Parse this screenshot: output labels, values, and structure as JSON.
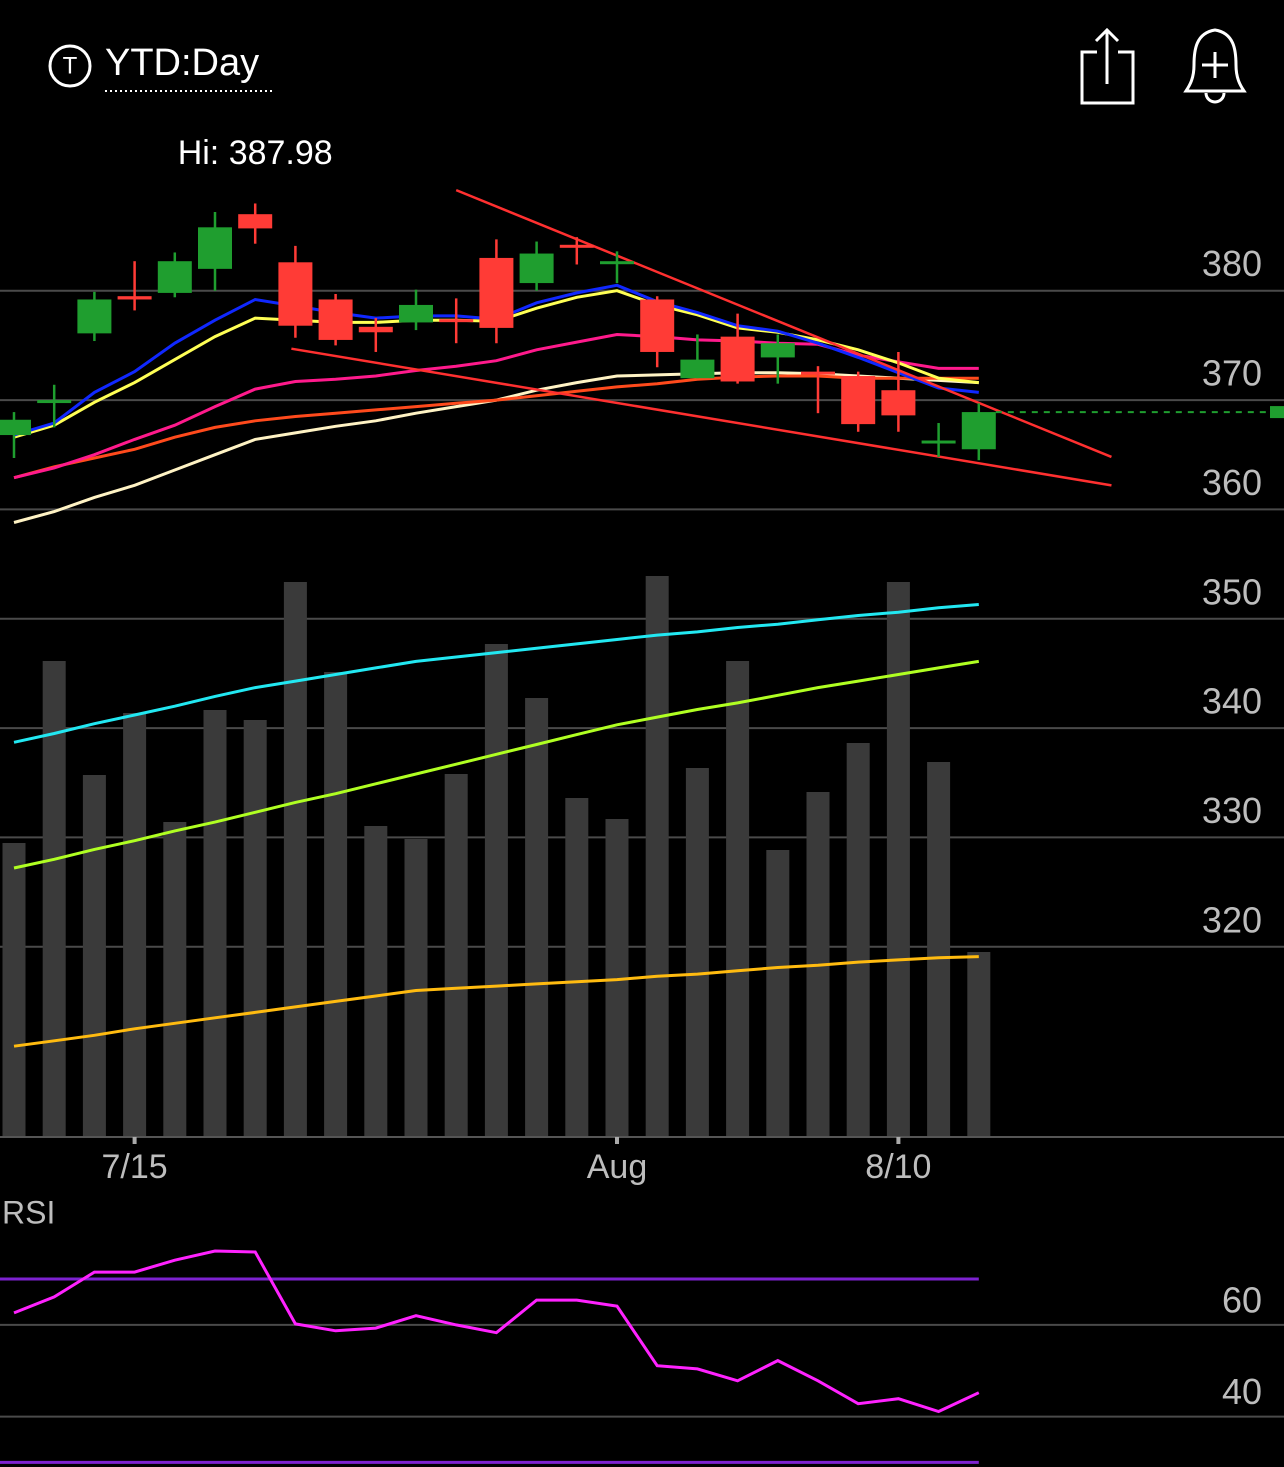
{
  "header": {
    "symbol_badge": "T",
    "range": "YTD:Day"
  },
  "chart_data": [
    {
      "type": "candlestick",
      "categories": [
        null,
        null,
        null,
        "7/15",
        null,
        null,
        null,
        null,
        null,
        null,
        null,
        null,
        null,
        null,
        null,
        "Aug",
        null,
        null,
        null,
        null,
        null,
        null,
        "8/10",
        null,
        null
      ],
      "open": [
        366.8,
        369.8,
        376.1,
        379.5,
        379.8,
        382.0,
        387.0,
        382.6,
        379.2,
        376.7,
        377.1,
        377.4,
        383.0,
        380.7,
        384.2,
        382.5,
        379.2,
        372.0,
        375.8,
        373.9,
        372.6,
        372.2,
        370.9,
        366.2,
        365.5
      ],
      "high": [
        368.9,
        371.4,
        379.9,
        382.7,
        383.5,
        387.2,
        387.98,
        384.1,
        379.7,
        377.5,
        380.1,
        379.3,
        384.7,
        384.5,
        384.9,
        383.6,
        379.5,
        376.0,
        377.9,
        376.0,
        373.1,
        372.6,
        374.4,
        367.9,
        369.7
      ],
      "low": [
        364.7,
        367.5,
        375.4,
        378.2,
        379.4,
        380.0,
        384.3,
        375.7,
        375.0,
        374.4,
        376.4,
        375.2,
        375.2,
        380.0,
        382.4,
        380.7,
        373.0,
        372.0,
        371.5,
        371.5,
        368.8,
        367.1,
        367.1,
        364.8,
        364.5
      ],
      "close": [
        368.2,
        370.0,
        379.2,
        379.2,
        382.7,
        385.8,
        385.7,
        376.8,
        375.5,
        376.2,
        378.7,
        377.3,
        376.6,
        383.4,
        384.1,
        382.7,
        374.4,
        373.7,
        371.7,
        375.2,
        372.4,
        367.8,
        368.6,
        366.3,
        368.9
      ],
      "up_color": "#1f9e2f",
      "down_color": "#ff3b36",
      "hi_label": "Hi:",
      "hi_index": 6,
      "ylim": [
        302.6,
        394.7
      ],
      "yticks": [
        320,
        330,
        340,
        350,
        360,
        370,
        380
      ],
      "grid": true,
      "overlays": [
        {
          "color": "#fff3c4",
          "values": [
            358.8,
            359.8,
            361.1,
            362.2,
            363.6,
            365.0,
            366.4,
            367.0,
            367.6,
            368.1,
            368.8,
            369.4,
            370.0,
            370.9,
            371.6,
            372.2,
            372.3,
            372.4,
            372.5,
            372.5,
            372.4,
            372.2,
            372.0,
            371.8,
            371.6
          ]
        },
        {
          "color": "#ff4a1c",
          "values": [
            362.9,
            363.9,
            364.7,
            365.5,
            366.6,
            367.5,
            368.1,
            368.5,
            368.8,
            369.1,
            369.4,
            369.7,
            370.0,
            370.4,
            370.8,
            371.2,
            371.5,
            371.9,
            372.1,
            372.2,
            372.2,
            372.0,
            372.0,
            372.0,
            372.0
          ]
        },
        {
          "color": "#ff1a8c",
          "values": [
            362.9,
            363.8,
            365.0,
            366.4,
            367.7,
            369.4,
            371.0,
            371.7,
            371.9,
            372.2,
            372.7,
            373.1,
            373.6,
            374.6,
            375.3,
            376.0,
            375.8,
            375.5,
            375.4,
            375.2,
            375.1,
            374.1,
            373.5,
            372.9,
            372.9
          ]
        },
        {
          "color": "#ffff55",
          "values": [
            366.6,
            367.7,
            369.8,
            371.6,
            373.7,
            375.8,
            377.5,
            377.3,
            377.1,
            377.1,
            377.3,
            377.3,
            377.2,
            378.4,
            379.4,
            380.0,
            378.7,
            377.8,
            376.6,
            376.2,
            375.5,
            374.6,
            373.4,
            372.0,
            371.6
          ]
        },
        {
          "color": "#1028ff",
          "values": [
            366.8,
            367.9,
            370.7,
            372.6,
            375.2,
            377.3,
            379.2,
            378.6,
            378.0,
            377.5,
            377.7,
            377.7,
            377.4,
            378.9,
            379.8,
            380.5,
            379.0,
            378.0,
            376.8,
            376.3,
            375.2,
            373.9,
            372.5,
            371.1,
            370.7
          ]
        },
        {
          "color": "#22e8f2",
          "values": [
            338.7,
            339.5,
            340.4,
            341.2,
            342.0,
            342.9,
            343.7,
            344.3,
            344.9,
            345.5,
            346.1,
            346.5,
            346.9,
            347.3,
            347.7,
            348.1,
            348.5,
            348.8,
            349.2,
            349.5,
            349.9,
            350.3,
            350.6,
            351.0,
            351.3
          ]
        },
        {
          "color": "#b0ff22",
          "values": [
            327.2,
            328.0,
            328.9,
            329.7,
            330.6,
            331.4,
            332.3,
            333.2,
            334.0,
            334.9,
            335.8,
            336.7,
            337.6,
            338.5,
            339.4,
            340.3,
            341.0,
            341.7,
            342.3,
            343.0,
            343.7,
            344.3,
            344.9,
            345.5,
            346.1
          ]
        },
        {
          "color": "#ffbb10",
          "values": [
            310.9,
            311.4,
            311.9,
            312.5,
            313.0,
            313.5,
            314.0,
            314.5,
            315.0,
            315.5,
            316.0,
            316.2,
            316.4,
            316.6,
            316.8,
            317.0,
            317.3,
            317.5,
            317.8,
            318.1,
            318.3,
            318.6,
            318.8,
            319.0,
            319.1
          ]
        }
      ],
      "trendlines": [
        {
          "color": "#ff3030",
          "x": [
            11.0,
            27.3
          ],
          "y": [
            389.2,
            364.8
          ]
        },
        {
          "color": "#ff3030",
          "x": [
            6.9,
            27.3
          ],
          "y": [
            374.7,
            362.2
          ]
        }
      ],
      "volume": {
        "color": "#3a3a3a",
        "ylim": [
          0,
          577
        ],
        "values": [
          294,
          476,
          362,
          424,
          315,
          427,
          417,
          555,
          465,
          311,
          298,
          363,
          493,
          439,
          339,
          318,
          561,
          369,
          476,
          287,
          345,
          394,
          555,
          375,
          185
        ]
      },
      "last_price_line": {
        "color": "#1f9e2f",
        "dashed": true
      }
    },
    {
      "type": "line",
      "title": "RSI",
      "color": "#ff22ff",
      "values": [
        62.6,
        66.1,
        71.5,
        71.5,
        74.1,
        76.1,
        75.9,
        60.2,
        58.7,
        59.3,
        62.0,
        60.0,
        58.3,
        65.4,
        65.4,
        64.1,
        51.1,
        50.4,
        47.8,
        52.2,
        47.8,
        42.8,
        43.9,
        41.1,
        45.2
      ],
      "ylim": [
        29,
        79.6
      ],
      "yticks": [
        40,
        60
      ],
      "grid": true,
      "bands": [
        30,
        70
      ],
      "band_color": "#7d22d0"
    }
  ]
}
